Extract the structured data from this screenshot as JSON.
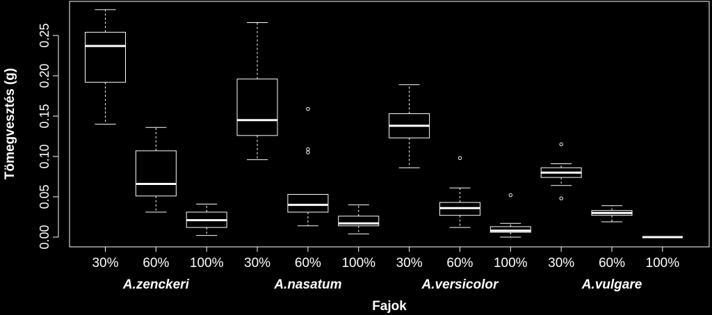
{
  "chart_data": {
    "type": "boxplot",
    "ylabel": "Tömegvesztés (g)",
    "xlabel": "Fajok",
    "ylim": [
      0,
      0.25
    ],
    "yticks": [
      "0.00",
      "0.05",
      "0.10",
      "0.15",
      "0.20",
      "0.25"
    ],
    "grid": false,
    "species": [
      {
        "name": "A.zenckeri",
        "groups": [
          {
            "label": "30%",
            "min": 0.14,
            "q1": 0.192,
            "median": 0.237,
            "q3": 0.254,
            "max": 0.282,
            "outliers": []
          },
          {
            "label": "60%",
            "min": 0.031,
            "q1": 0.051,
            "median": 0.066,
            "q3": 0.107,
            "max": 0.136,
            "outliers": []
          },
          {
            "label": "100%",
            "min": 0.002,
            "q1": 0.012,
            "median": 0.021,
            "q3": 0.031,
            "max": 0.041,
            "outliers": []
          }
        ]
      },
      {
        "name": "A.nasatum",
        "groups": [
          {
            "label": "30%",
            "min": 0.096,
            "q1": 0.126,
            "median": 0.145,
            "q3": 0.196,
            "max": 0.266,
            "outliers": []
          },
          {
            "label": "60%",
            "min": 0.014,
            "q1": 0.031,
            "median": 0.04,
            "q3": 0.053,
            "max": 0.053,
            "outliers": [
              0.105,
              0.109,
              0.159
            ]
          },
          {
            "label": "100%",
            "min": 0.004,
            "q1": 0.014,
            "median": 0.017,
            "q3": 0.026,
            "max": 0.04,
            "outliers": []
          }
        ]
      },
      {
        "name": "A.versicolor",
        "groups": [
          {
            "label": "30%",
            "min": 0.086,
            "q1": 0.123,
            "median": 0.138,
            "q3": 0.153,
            "max": 0.189,
            "outliers": []
          },
          {
            "label": "60%",
            "min": 0.012,
            "q1": 0.027,
            "median": 0.036,
            "q3": 0.043,
            "max": 0.061,
            "outliers": [
              0.098
            ]
          },
          {
            "label": "100%",
            "min": 0.0,
            "q1": 0.006,
            "median": 0.008,
            "q3": 0.013,
            "max": 0.017,
            "outliers": [
              0.052
            ]
          }
        ]
      },
      {
        "name": "A.vulgare",
        "groups": [
          {
            "label": "30%",
            "min": 0.064,
            "q1": 0.074,
            "median": 0.08,
            "q3": 0.086,
            "max": 0.091,
            "outliers": [
              0.048,
              0.115
            ]
          },
          {
            "label": "60%",
            "min": 0.019,
            "q1": 0.027,
            "median": 0.03,
            "q3": 0.033,
            "max": 0.039,
            "outliers": []
          },
          {
            "label": "100%",
            "min": 0.0,
            "q1": 0.0,
            "median": 0.0,
            "q3": 0.0,
            "max": 0.0,
            "outliers": []
          }
        ]
      }
    ]
  }
}
